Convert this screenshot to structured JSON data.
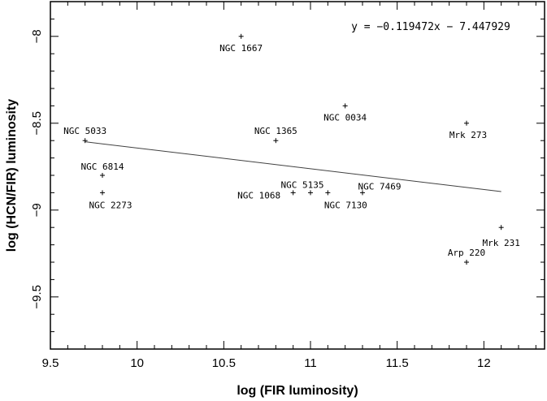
{
  "chart_data": {
    "type": "scatter",
    "xlabel": "log (FIR luminosity)",
    "ylabel": "log (HCN/FIR) luminosity",
    "xlim": [
      9.5,
      12.35
    ],
    "ylim": [
      -9.8,
      -7.8
    ],
    "xticks": [
      "9.5",
      "10",
      "10.5",
      "11",
      "11.5",
      "12"
    ],
    "yticks": [
      "−8",
      "−8.5",
      "−9",
      "−9.5"
    ],
    "x_tick_values": [
      9.5,
      10,
      10.5,
      11,
      11.5,
      12
    ],
    "y_tick_values": [
      -8,
      -8.5,
      -9,
      -9.5
    ],
    "grid": false,
    "equation": "y = −0.119472x − 7.447929",
    "fit": {
      "slope": -0.119472,
      "intercept": -7.447929,
      "x_range": [
        9.7,
        12.1
      ]
    },
    "points": [
      {
        "name": "NGC 1667",
        "x": 10.6,
        "y": -8.0,
        "label_dx": 0,
        "label_dy": 14
      },
      {
        "name": "NGC 0034",
        "x": 11.2,
        "y": -8.4,
        "label_dx": 0,
        "label_dy": 14
      },
      {
        "name": "Mrk 273",
        "x": 11.9,
        "y": -8.5,
        "label_dx": 2,
        "label_dy": 14
      },
      {
        "name": "NGC 5033",
        "x": 9.7,
        "y": -8.6,
        "label_dx": 0,
        "label_dy": -12
      },
      {
        "name": "NGC 1365",
        "x": 10.8,
        "y": -8.6,
        "label_dx": 0,
        "label_dy": -12
      },
      {
        "name": "NGC 6814",
        "x": 9.8,
        "y": -8.8,
        "label_dx": 0,
        "label_dy": -11
      },
      {
        "name": "NGC 2273",
        "x": 9.8,
        "y": -8.9,
        "label_dx": 10,
        "label_dy": 15
      },
      {
        "name": "NGC 5135",
        "x": 11.0,
        "y": -8.9,
        "label_dx": -10,
        "label_dy": -10
      },
      {
        "name": "NGC 1068",
        "x": 10.9,
        "y": -8.9,
        "label_dx": -42,
        "label_dy": 3
      },
      {
        "name": "NGC 7130",
        "x": 11.1,
        "y": -8.9,
        "label_dx": 22,
        "label_dy": 15
      },
      {
        "name": "NGC 7469",
        "x": 11.3,
        "y": -8.9,
        "label_dx": 21,
        "label_dy": -8
      },
      {
        "name": "Mrk 231",
        "x": 12.1,
        "y": -9.1,
        "label_dx": 0,
        "label_dy": 19
      },
      {
        "name": "Arp 220",
        "x": 11.9,
        "y": -9.3,
        "label_dx": 0,
        "label_dy": -12
      }
    ],
    "colors": {
      "axes": "#000000",
      "fit_line": "#404040",
      "background": "#ffffff"
    }
  }
}
